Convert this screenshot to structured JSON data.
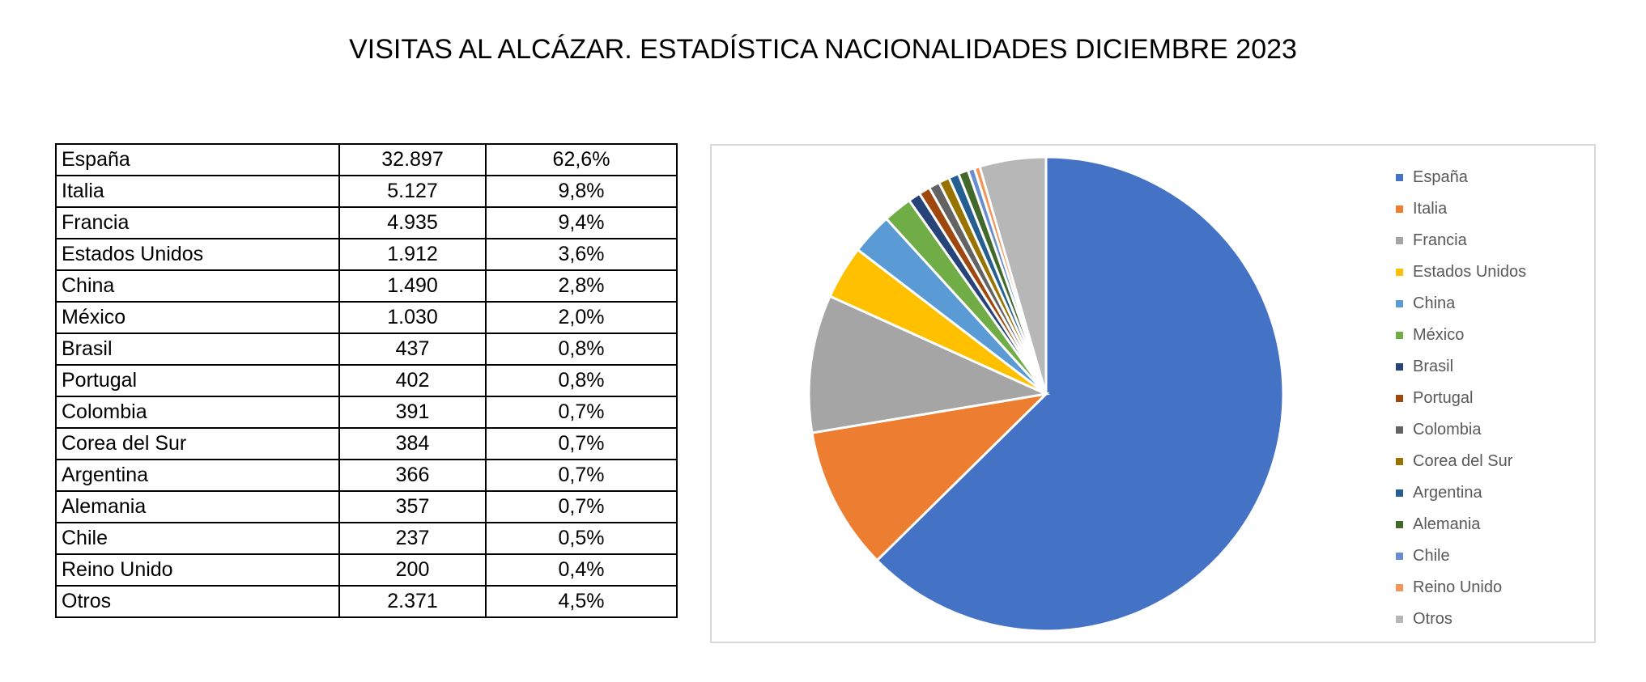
{
  "chart_data": {
    "type": "pie",
    "title": "VISITAS AL ALCÁZAR. ESTADÍSTICA NACIONALIDADES DICIEMBRE 2023",
    "categories": [
      "España",
      "Italia",
      "Francia",
      "Estados Unidos",
      "China",
      "México",
      "Brasil",
      "Portugal",
      "Colombia",
      "Corea del Sur",
      "Argentina",
      "Alemania",
      "Chile",
      "Reino Unido",
      "Otros"
    ],
    "values": [
      32897,
      5127,
      4935,
      1912,
      1490,
      1030,
      437,
      402,
      391,
      384,
      366,
      357,
      237,
      200,
      2371
    ],
    "value_labels": [
      "32.897",
      "5.127",
      "4.935",
      "1.912",
      "1.490",
      "1.030",
      "437",
      "402",
      "391",
      "384",
      "366",
      "357",
      "237",
      "200",
      "2.371"
    ],
    "percent_labels": [
      "62,6%",
      "9,8%",
      "9,4%",
      "3,6%",
      "2,8%",
      "2,0%",
      "0,8%",
      "0,8%",
      "0,7%",
      "0,7%",
      "0,7%",
      "0,7%",
      "0,5%",
      "0,4%",
      "4,5%"
    ],
    "colors": [
      "#4472c4",
      "#ed7d31",
      "#a5a5a5",
      "#ffc000",
      "#5b9bd5",
      "#70ad47",
      "#264478",
      "#9e480e",
      "#636363",
      "#997300",
      "#255e91",
      "#43682b",
      "#698ed0",
      "#f1975a",
      "#b7b7b7"
    ],
    "legend_position": "right"
  }
}
